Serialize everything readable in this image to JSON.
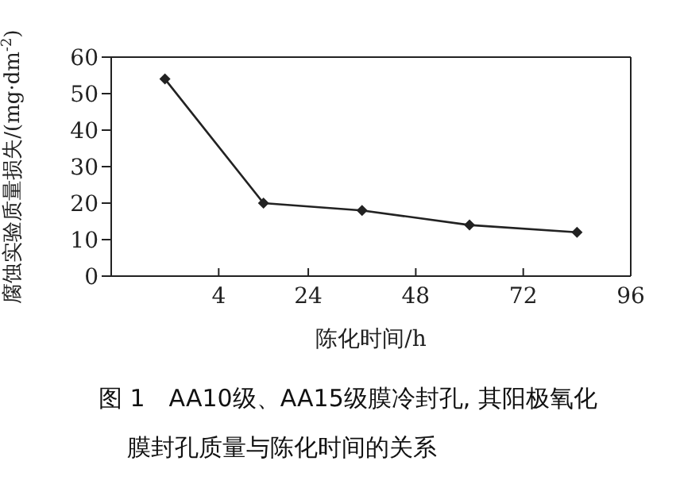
{
  "chart_data": {
    "type": "line",
    "title": "图 1　AA10级、AA15级膜冷封孔, 其阳极氧化膜封孔质量与陈化时间的关系",
    "xlabel": "陈化时间/h",
    "ylabel": "腐蚀实验质量损失/(mg·dm$^{-2}$)",
    "x": [
      -8,
      14,
      36,
      60,
      84
    ],
    "series": [
      {
        "color": "#222222",
        "values": [
          54,
          20,
          18,
          14,
          12
        ]
      }
    ],
    "xlim": [
      -20,
      96
    ],
    "xticks": [
      4,
      24,
      48,
      72,
      96
    ],
    "ylim": [
      0,
      60
    ],
    "yticks": [
      0,
      10,
      20,
      30,
      40,
      50,
      60
    ],
    "grid": false,
    "legend": false,
    "marker": "diamond",
    "line_style": "solid"
  }
}
